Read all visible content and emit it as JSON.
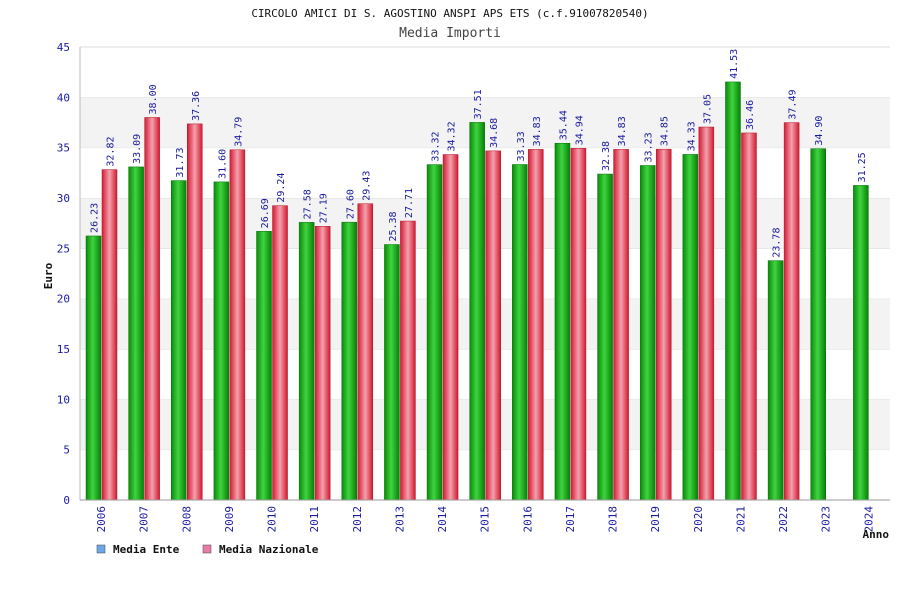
{
  "chart_data": {
    "type": "bar",
    "title": "CIRCOLO AMICI DI S. AGOSTINO ANSPI APS ETS (c.f.91007820540)",
    "subtitle": "Media Importi",
    "xlabel": "Anno",
    "ylabel": "Euro",
    "ylim": [
      0,
      45
    ],
    "yticks": [
      0,
      5,
      10,
      15,
      20,
      25,
      30,
      35,
      40,
      45
    ],
    "grid": "alternating horizontal bands",
    "legend_position": "bottom-left",
    "categories": [
      "2006",
      "2007",
      "2008",
      "2009",
      "2010",
      "2011",
      "2012",
      "2013",
      "2014",
      "2015",
      "2016",
      "2017",
      "2018",
      "2019",
      "2020",
      "2021",
      "2022",
      "2023",
      "2024"
    ],
    "series": [
      {
        "name": "Media Ente",
        "color": "#22b322",
        "legend_color": "#6aa8e8",
        "values": [
          26.23,
          33.09,
          31.73,
          31.6,
          26.69,
          27.58,
          27.6,
          25.38,
          33.32,
          37.51,
          33.33,
          35.44,
          32.38,
          33.23,
          34.33,
          41.53,
          23.78,
          34.9,
          31.25
        ],
        "labels": [
          "26.23",
          "33.09",
          "31.73",
          "31.60",
          "26.69",
          "27.58",
          "27.60",
          "25.38",
          "33.32",
          "37.51",
          "33.33",
          "35.44",
          "32.38",
          "33.23",
          "34.33",
          "41.53",
          "23.78",
          "34.90",
          "31.25"
        ]
      },
      {
        "name": "Media Nazionale",
        "color": "#e8354a",
        "legend_color": "#e87aa8",
        "values": [
          32.82,
          38.0,
          37.36,
          34.79,
          29.24,
          27.19,
          29.43,
          27.71,
          34.32,
          34.68,
          34.83,
          34.94,
          34.83,
          34.85,
          37.05,
          36.46,
          37.49,
          null,
          null
        ],
        "labels": [
          "32.82",
          "38.00",
          "37.36",
          "34.79",
          "29.24",
          "27.19",
          "29.43",
          "27.71",
          "34.32",
          "34.68",
          "34.83",
          "34.94",
          "34.83",
          "34.85",
          "37.05",
          "36.46",
          "37.49",
          null,
          null
        ]
      }
    ]
  }
}
